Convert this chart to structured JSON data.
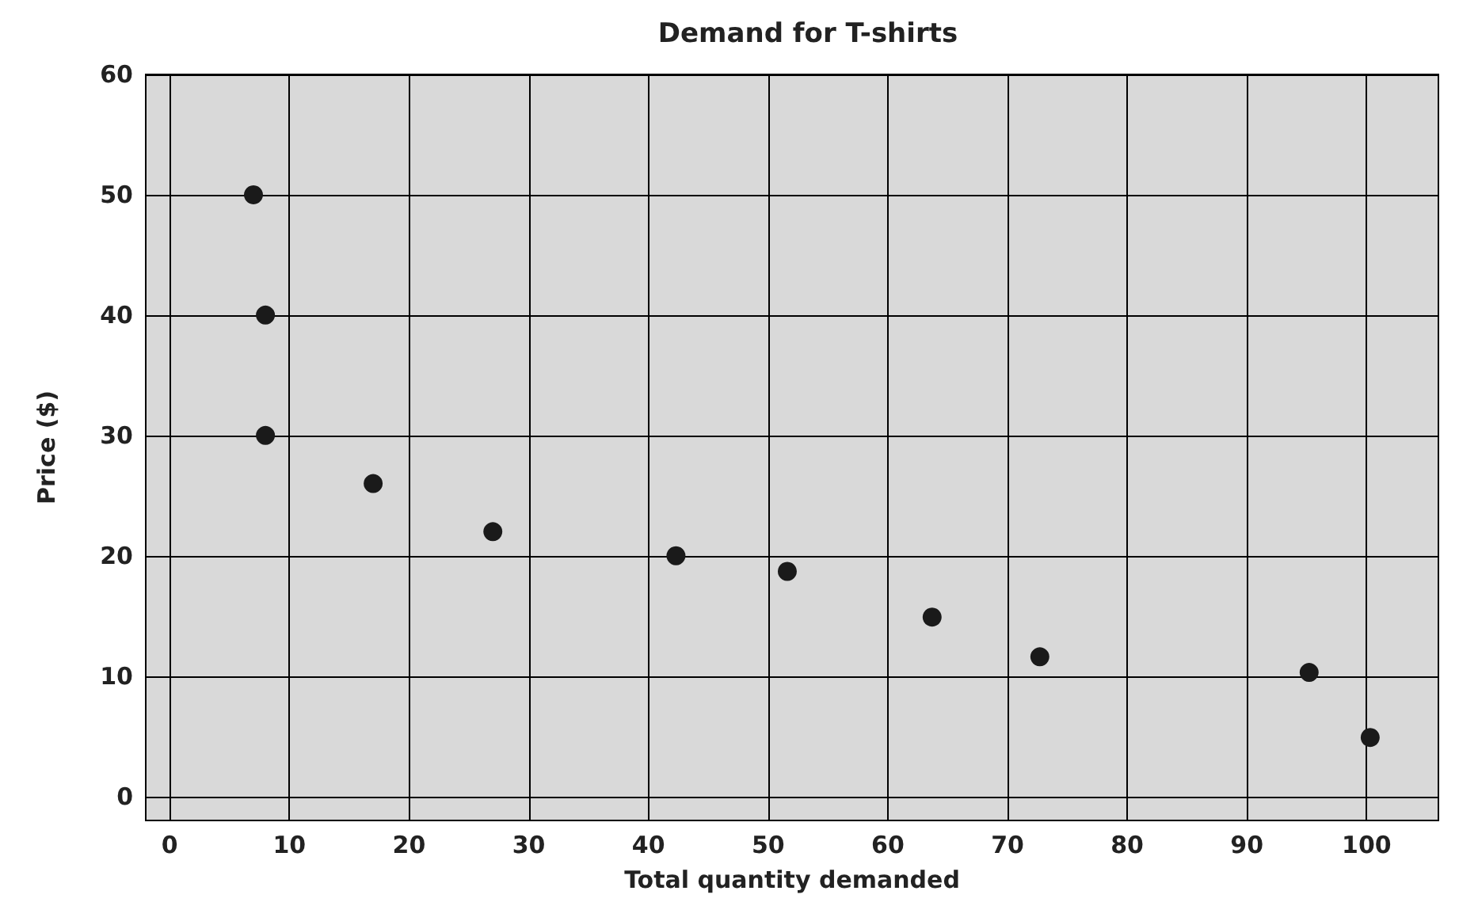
{
  "chart_data": {
    "type": "scatter",
    "title": "Demand for T-shirts",
    "xlabel": "Total quantity demanded",
    "ylabel": "Price ($)",
    "x": [
      7,
      8,
      8,
      17,
      27,
      42.3,
      51.6,
      63.7,
      72.7,
      95.2,
      100.3
    ],
    "values": [
      50,
      40,
      30,
      26,
      22,
      20,
      18.7,
      14.9,
      11.6,
      10.3,
      4.9
    ],
    "color": "#1a1a1a",
    "marker": "circle",
    "xlim": [
      -2,
      106
    ],
    "xticks": [
      0,
      10,
      20,
      30,
      40,
      50,
      60,
      70,
      80,
      90,
      100
    ],
    "ylim": [
      -2,
      60
    ],
    "yticks": [
      0,
      10,
      20,
      30,
      40,
      50,
      60
    ],
    "grid": true
  }
}
